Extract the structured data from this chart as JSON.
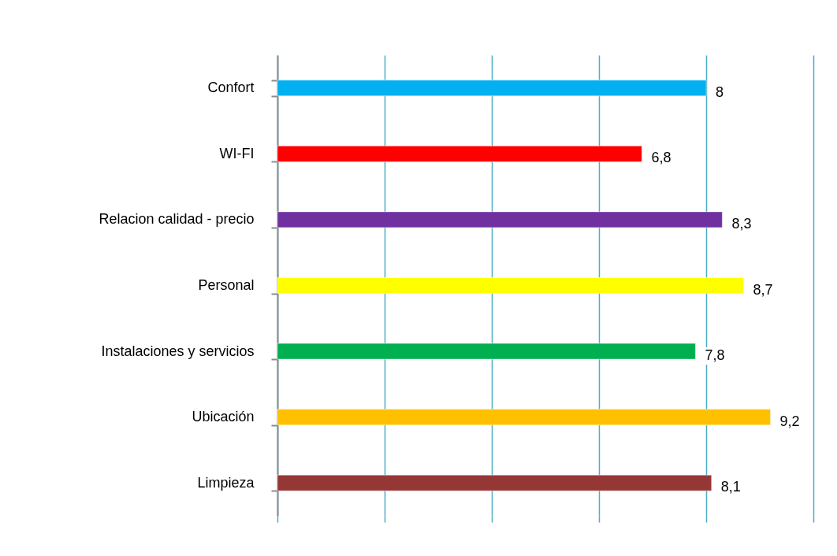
{
  "chart_data": {
    "type": "bar",
    "orientation": "horizontal",
    "categories": [
      "Confort",
      "WI-FI",
      "Relacion calidad - precio",
      "Personal",
      "Instalaciones y servicios",
      "Ubicación",
      "Limpieza"
    ],
    "values": [
      8,
      6.8,
      8.3,
      8.7,
      7.8,
      9.2,
      8.1
    ],
    "value_labels": [
      "8",
      "6,8",
      "8,3",
      "8,7",
      "7,8",
      "9,2",
      "8,1"
    ],
    "colors": [
      "#00b0f0",
      "#ff0000",
      "#7030a0",
      "#ffff00",
      "#00b050",
      "#ffc000",
      "#953735"
    ],
    "xlim": [
      0,
      10
    ],
    "xticks": [
      {
        "value": 0,
        "label": null
      },
      {
        "value": 2,
        "label": null
      },
      {
        "value": 4,
        "label": null
      },
      {
        "value": 6,
        "label": null
      },
      {
        "value": 8,
        "label": null
      },
      {
        "value": 10,
        "label": null
      }
    ],
    "grid": "x",
    "tick_labels": "y"
  }
}
